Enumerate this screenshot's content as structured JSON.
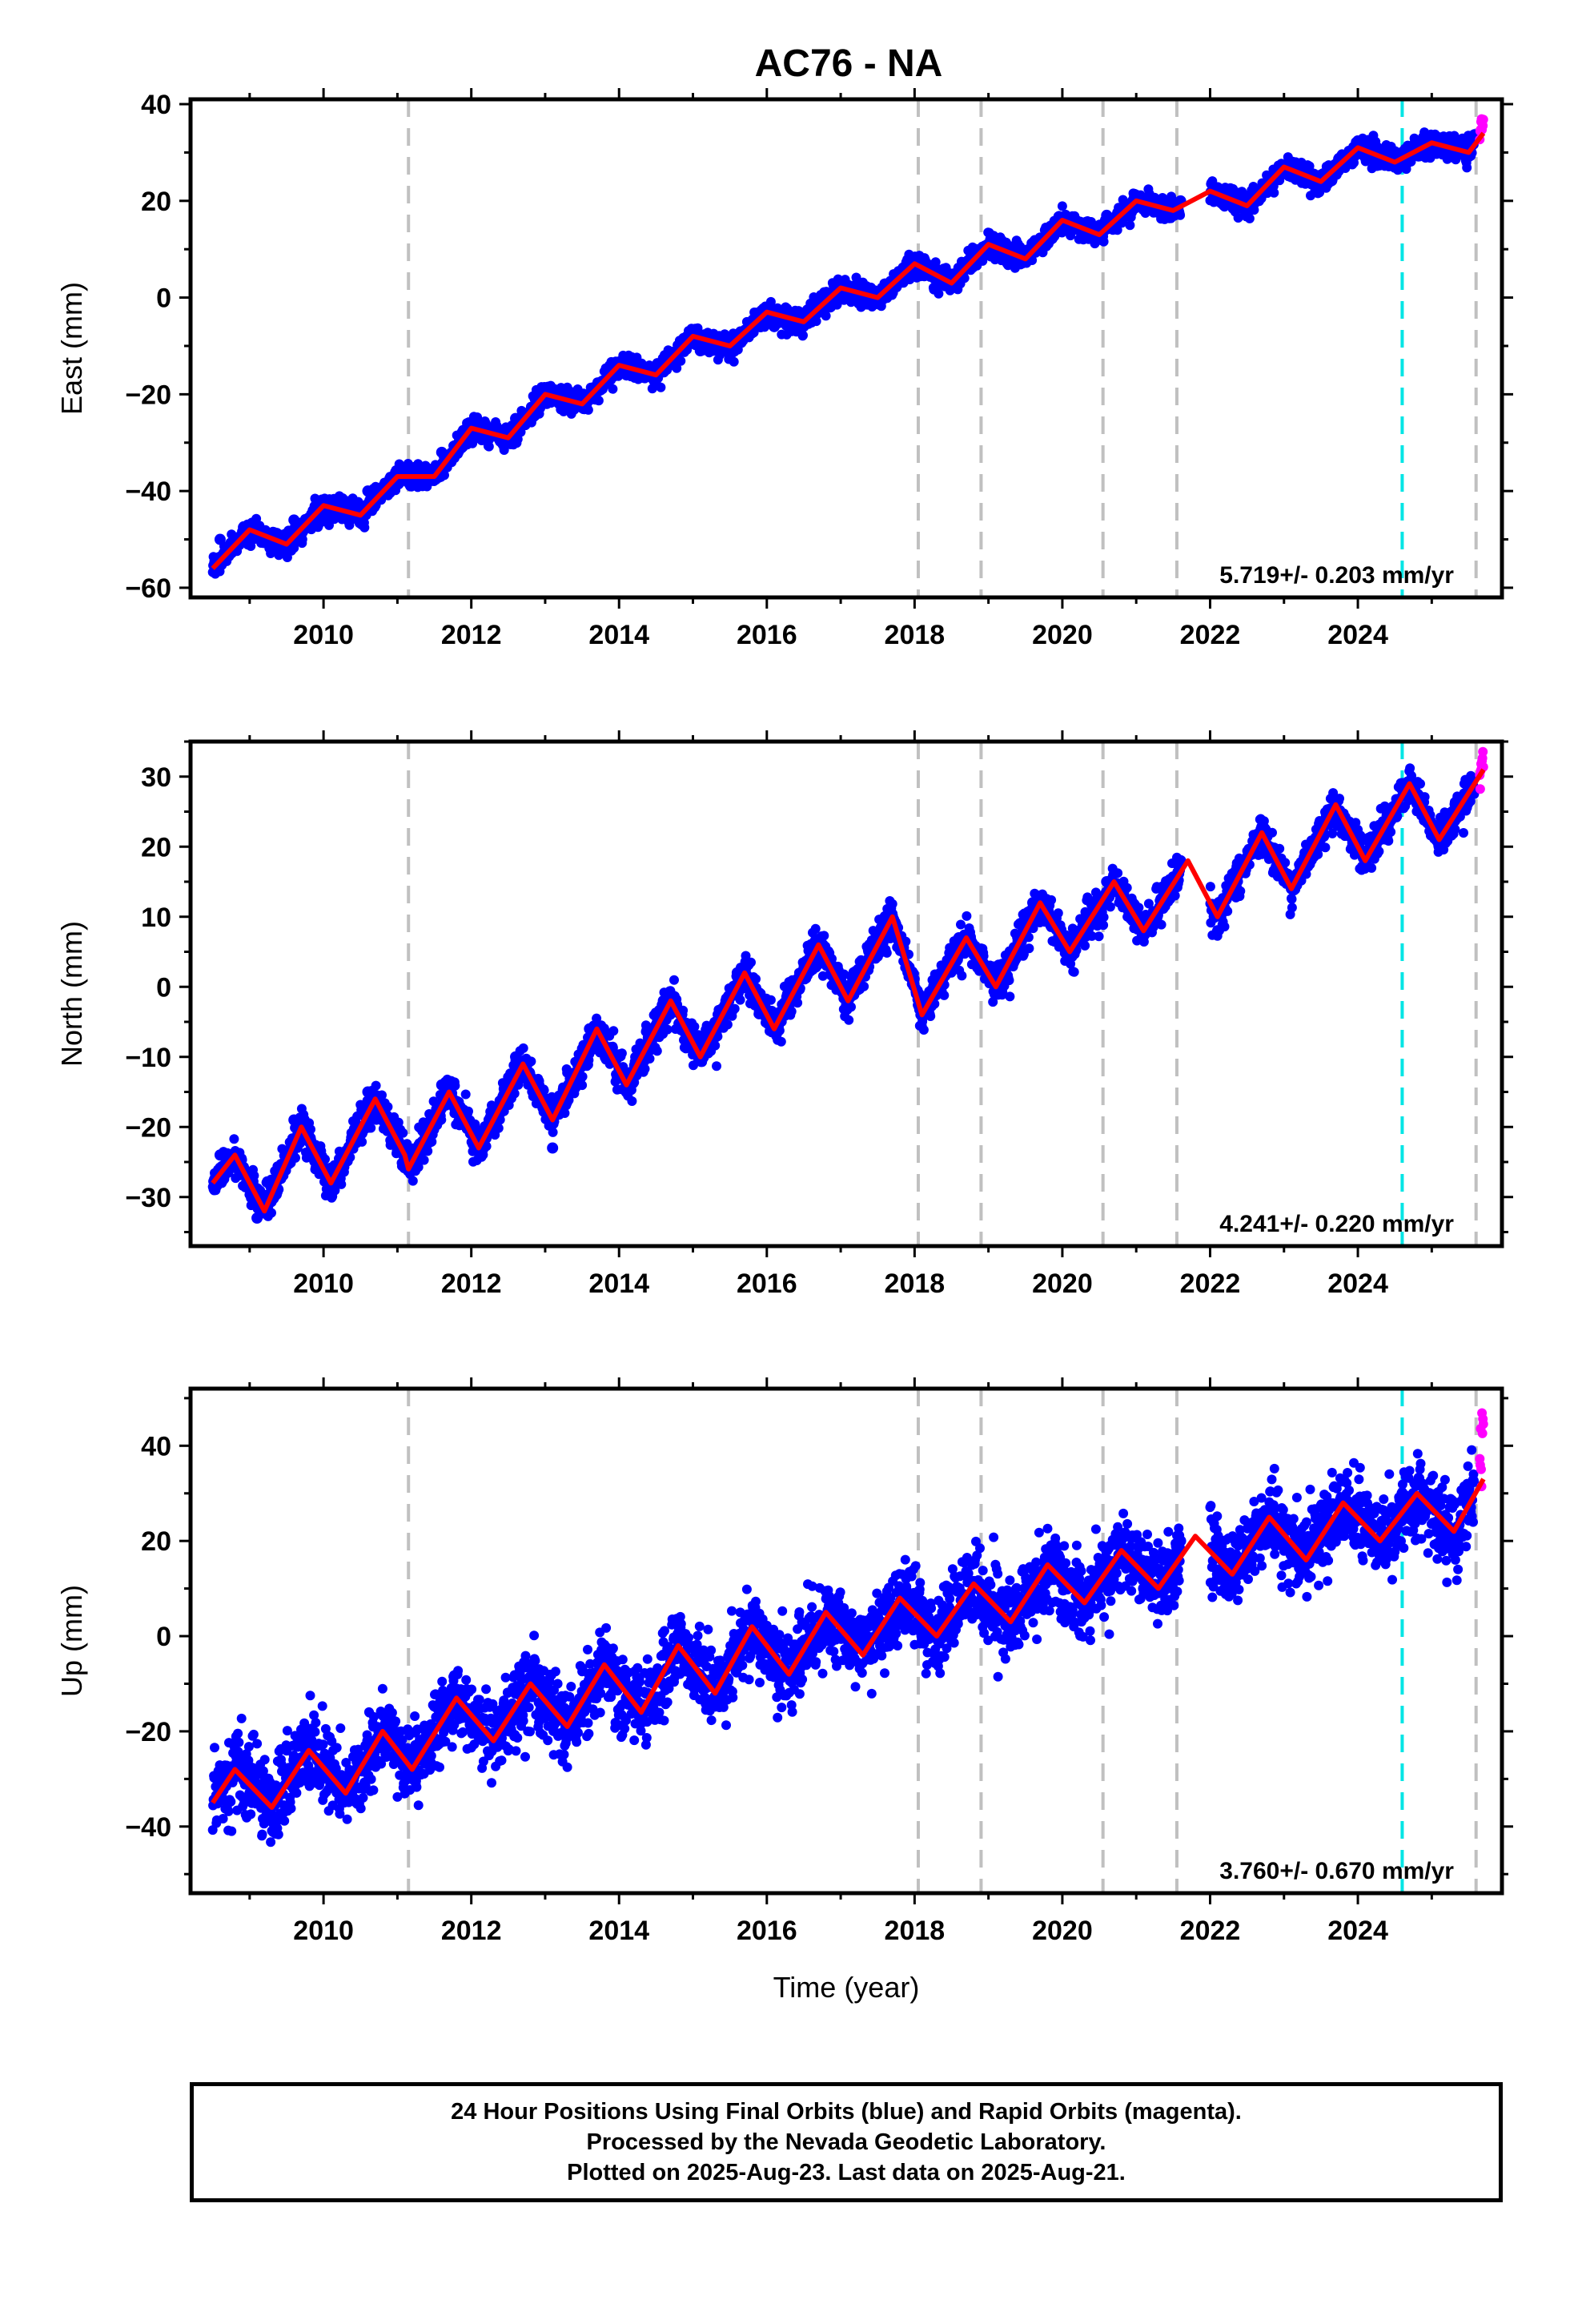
{
  "title": "AC76 - NA",
  "footer": {
    "line1": "24 Hour Positions Using Final Orbits (blue) and Rapid Orbits (magenta).",
    "line2": "Processed by the Nevada Geodetic Laboratory.",
    "line3": "Plotted on 2025-Aug-23. Last data on 2025-Aug-21."
  },
  "colors": {
    "final_orbits": "#0000ff",
    "rapid_orbits": "#ff00ff",
    "model_fit": "#ff0000",
    "equipment_change": "#c0c0c0",
    "earthquake_event": "#00e5e5"
  },
  "chart_data": [
    {
      "type": "scatter",
      "ylabel": "East (mm)",
      "xlim": [
        2008.2,
        2025.95
      ],
      "ylim": [
        -62,
        41
      ],
      "x_ticks": [
        2010,
        2012,
        2014,
        2016,
        2018,
        2020,
        2022,
        2024
      ],
      "y_ticks": [
        -60,
        -40,
        -20,
        0,
        20,
        40
      ],
      "rate_label": "5.719+/- 0.203 mm/yr",
      "grid": false,
      "equipment_change_lines": [
        2011.15,
        2018.05,
        2018.9,
        2020.55,
        2021.55,
        2025.6
      ],
      "earthquake_lines": [
        2024.6
      ],
      "series": [
        {
          "name": "final orbits",
          "x": [
            2008.6,
            2009.1,
            2009.6,
            2010.1,
            2010.6,
            2011.1,
            2011.6,
            2012.1,
            2012.6,
            2013.1,
            2013.6,
            2014.1,
            2014.6,
            2015.1,
            2015.6,
            2016.1,
            2016.6,
            2017.1,
            2017.6,
            2018.1,
            2018.6,
            2019.1,
            2019.6,
            2020.1,
            2020.6,
            2021.1,
            2021.6,
            2022.1,
            2022.6,
            2023.1,
            2023.6,
            2024.1,
            2024.6,
            2025.1,
            2025.5
          ],
          "y": [
            -50,
            -49,
            -46,
            -44,
            -40,
            -36,
            -32,
            -27,
            -25,
            -21,
            -21,
            -16,
            -14,
            -11,
            -10,
            -6,
            -4,
            0,
            2,
            5,
            6,
            10,
            11,
            15,
            17,
            19,
            20,
            20,
            20,
            25,
            26,
            29,
            30,
            30,
            31
          ]
        },
        {
          "name": "rapid orbits",
          "x": [
            2025.65,
            2025.7
          ],
          "y": [
            34,
            37
          ]
        },
        {
          "name": "model",
          "x": [
            2008.5,
            2009.0,
            2009.5,
            2010.0,
            2010.5,
            2011.0,
            2011.5,
            2012.0,
            2012.5,
            2013.0,
            2013.5,
            2014.0,
            2014.5,
            2015.0,
            2015.5,
            2016.0,
            2016.5,
            2017.0,
            2017.5,
            2018.0,
            2018.5,
            2019.0,
            2019.5,
            2020.0,
            2020.5,
            2021.0,
            2021.5,
            2022.0,
            2022.5,
            2023.0,
            2023.5,
            2024.0,
            2024.5,
            2025.0,
            2025.5,
            2025.7
          ],
          "y": [
            -56,
            -48,
            -51,
            -43,
            -45,
            -37,
            -37,
            -27,
            -29,
            -20,
            -22,
            -14,
            -16,
            -8,
            -10,
            -3,
            -5,
            2,
            0,
            7,
            3,
            11,
            8,
            16,
            13,
            20,
            18,
            22,
            19,
            27,
            24,
            31,
            28,
            32,
            30,
            34
          ]
        }
      ]
    },
    {
      "type": "scatter",
      "ylabel": "North (mm)",
      "xlim": [
        2008.2,
        2025.95
      ],
      "ylim": [
        -37,
        35
      ],
      "x_ticks": [
        2010,
        2012,
        2014,
        2016,
        2018,
        2020,
        2022,
        2024
      ],
      "y_ticks": [
        -30,
        -20,
        -10,
        0,
        10,
        20,
        30
      ],
      "rate_label": "4.241+/- 0.220 mm/yr",
      "grid": false,
      "equipment_change_lines": [
        2011.15,
        2018.05,
        2018.9,
        2020.55,
        2021.55,
        2025.6
      ],
      "earthquake_lines": [
        2024.6
      ],
      "series": [
        {
          "name": "final orbits",
          "x": [
            2008.6,
            2009.1,
            2009.6,
            2010.1,
            2010.6,
            2011.1,
            2011.6,
            2012.1,
            2012.6,
            2013.1,
            2013.6,
            2014.1,
            2014.6,
            2015.1,
            2015.6,
            2016.1,
            2016.6,
            2017.1,
            2017.6,
            2018.1,
            2018.6,
            2019.1,
            2019.6,
            2020.1,
            2020.6,
            2021.1,
            2021.6,
            2022.1,
            2022.6,
            2023.1,
            2023.6,
            2024.1,
            2024.6,
            2025.1,
            2025.5
          ],
          "y": [
            -24,
            -33,
            -19,
            -28,
            -15,
            -23,
            -14,
            -22,
            -10,
            -23,
            -6,
            -15,
            -2,
            -10,
            2,
            -6,
            6,
            -2,
            10,
            -4,
            7,
            1,
            12,
            6,
            15,
            8,
            18,
            11,
            21,
            14,
            25,
            18,
            29,
            20,
            28
          ]
        },
        {
          "name": "rapid orbits",
          "x": [
            2025.65,
            2025.7
          ],
          "y": [
            30,
            33
          ]
        },
        {
          "name": "model",
          "x": [
            2008.5,
            2008.8,
            2009.2,
            2009.7,
            2010.1,
            2010.7,
            2011.1,
            2011.15,
            2011.7,
            2012.1,
            2012.7,
            2013.1,
            2013.7,
            2014.1,
            2014.7,
            2015.1,
            2015.7,
            2016.1,
            2016.7,
            2017.1,
            2017.7,
            2018.1,
            2018.7,
            2019.1,
            2019.7,
            2020.1,
            2020.7,
            2021.1,
            2021.7,
            2022.1,
            2022.7,
            2023.1,
            2023.7,
            2024.1,
            2024.7,
            2025.1,
            2025.7
          ],
          "y": [
            -28,
            -24,
            -32,
            -20,
            -28,
            -16,
            -24,
            -26,
            -15,
            -23,
            -11,
            -19,
            -6,
            -14,
            -2,
            -10,
            2,
            -6,
            6,
            -2,
            10,
            -4,
            7,
            0,
            12,
            5,
            15,
            8,
            18,
            10,
            22,
            14,
            26,
            18,
            29,
            21,
            31
          ]
        }
      ]
    },
    {
      "type": "scatter",
      "ylabel": "Up (mm)",
      "xlabel": "Time (year)",
      "xlim": [
        2008.2,
        2025.95
      ],
      "ylim": [
        -54,
        52
      ],
      "x_ticks": [
        2010,
        2012,
        2014,
        2016,
        2018,
        2020,
        2022,
        2024
      ],
      "y_ticks": [
        -40,
        -20,
        0,
        20,
        40
      ],
      "rate_label": "3.760+/- 0.670 mm/yr",
      "grid": false,
      "equipment_change_lines": [
        2011.15,
        2018.05,
        2018.9,
        2020.55,
        2021.55,
        2025.6
      ],
      "earthquake_lines": [
        2024.6
      ],
      "series": [
        {
          "name": "final orbits",
          "x": [
            2008.6,
            2009.1,
            2009.6,
            2010.1,
            2010.6,
            2011.1,
            2011.6,
            2012.1,
            2012.6,
            2013.1,
            2013.6,
            2014.1,
            2014.6,
            2015.1,
            2015.6,
            2016.1,
            2016.6,
            2017.1,
            2017.6,
            2018.1,
            2018.6,
            2019.1,
            2019.6,
            2020.1,
            2020.6,
            2021.1,
            2021.6,
            2022.1,
            2022.6,
            2023.1,
            2023.6,
            2024.1,
            2024.6,
            2025.1,
            2025.5
          ],
          "y": [
            -30,
            -35,
            -26,
            -31,
            -22,
            -27,
            -15,
            -21,
            -12,
            -17,
            -8,
            -13,
            -4,
            -9,
            0,
            -5,
            4,
            -1,
            8,
            0,
            10,
            3,
            14,
            6,
            18,
            10,
            20,
            13,
            24,
            17,
            28,
            21,
            30,
            23,
            31
          ]
        },
        {
          "name": "rapid orbits",
          "x": [
            2025.65,
            2025.7
          ],
          "y": [
            35,
            47
          ]
        },
        {
          "name": "model",
          "x": [
            2008.5,
            2008.8,
            2009.3,
            2009.8,
            2010.3,
            2010.8,
            2011.2,
            2011.8,
            2012.3,
            2012.8,
            2013.3,
            2013.8,
            2014.3,
            2014.8,
            2015.3,
            2015.8,
            2016.3,
            2016.8,
            2017.3,
            2017.8,
            2018.3,
            2018.8,
            2019.3,
            2019.8,
            2020.3,
            2020.8,
            2021.3,
            2021.8,
            2022.3,
            2022.8,
            2023.3,
            2023.8,
            2024.3,
            2024.8,
            2025.3,
            2025.7
          ],
          "y": [
            -35,
            -28,
            -36,
            -24,
            -33,
            -20,
            -28,
            -13,
            -22,
            -10,
            -19,
            -6,
            -16,
            -2,
            -12,
            2,
            -8,
            5,
            -4,
            8,
            0,
            11,
            3,
            15,
            7,
            18,
            10,
            21,
            13,
            25,
            16,
            28,
            20,
            30,
            22,
            33
          ]
        }
      ]
    }
  ]
}
